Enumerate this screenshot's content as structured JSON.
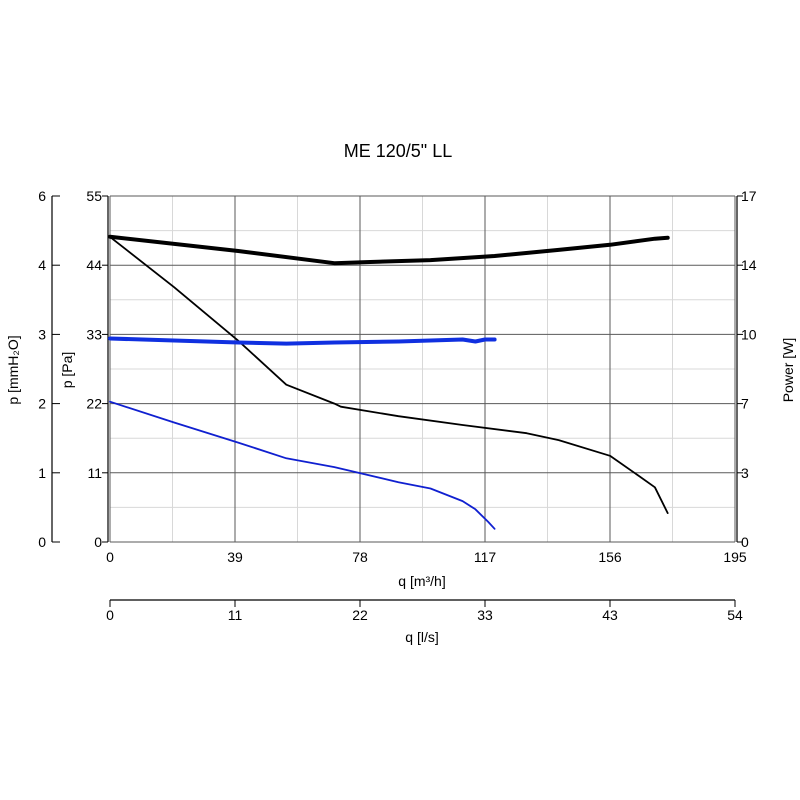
{
  "chart_data": {
    "type": "line",
    "title": "ME 120/5\" LL",
    "grid": true,
    "x_axes": [
      {
        "label": "q [m³/h]",
        "ticks": [
          "0",
          "39",
          "78",
          "117",
          "156",
          "195"
        ],
        "range": [
          0,
          195
        ]
      },
      {
        "label": "q [l/s]",
        "ticks": [
          "0",
          "11",
          "22",
          "33",
          "43",
          "54"
        ],
        "range": [
          0,
          54
        ]
      }
    ],
    "y_axes": [
      {
        "label": "p [mmH₂O]",
        "ticks": [
          "0",
          "1",
          "2",
          "3",
          "4",
          "6"
        ],
        "side": "left-outer"
      },
      {
        "label": "p [Pa]",
        "ticks": [
          "0",
          "11",
          "22",
          "33",
          "44",
          "55"
        ],
        "range": [
          0,
          55
        ],
        "side": "left"
      },
      {
        "label": "Power [W]",
        "ticks": [
          "0",
          "3",
          "7",
          "10",
          "14",
          "17"
        ],
        "range": [
          0,
          17
        ],
        "side": "right"
      }
    ],
    "series": [
      {
        "color": "#000000",
        "axis": "p [Pa]",
        "width": 1.8,
        "x": [
          0,
          20,
          40,
          55,
          70,
          72,
          90,
          110,
          130,
          140,
          156,
          165,
          170,
          174
        ],
        "y": [
          48.5,
          40.5,
          32,
          25,
          22,
          21.5,
          20,
          18.6,
          17.3,
          16.2,
          13.7,
          10.5,
          8.7,
          4.6
        ]
      },
      {
        "color": "#000000",
        "axis": "Power [W]",
        "width": 4,
        "x": [
          0,
          40,
          70,
          80,
          100,
          120,
          140,
          156,
          170,
          174
        ],
        "y": [
          15,
          14.3,
          13.7,
          13.75,
          13.85,
          14.05,
          14.35,
          14.6,
          14.9,
          14.95
        ]
      },
      {
        "color": "#1020d0",
        "axis": "p [Pa]",
        "width": 1.8,
        "x": [
          0,
          20,
          40,
          55,
          70,
          90,
          100,
          110,
          114,
          118,
          120
        ],
        "y": [
          22.3,
          19,
          15.8,
          13.3,
          11.9,
          9.5,
          8.5,
          6.5,
          5.2,
          3.2,
          2.1
        ]
      },
      {
        "color": "#1030e0",
        "axis": "Power [W]",
        "width": 4,
        "x": [
          0,
          20,
          40,
          55,
          70,
          90,
          110,
          114,
          117,
          120
        ],
        "y": [
          10,
          9.9,
          9.8,
          9.75,
          9.8,
          9.85,
          9.95,
          9.85,
          9.95,
          9.95
        ]
      }
    ]
  }
}
